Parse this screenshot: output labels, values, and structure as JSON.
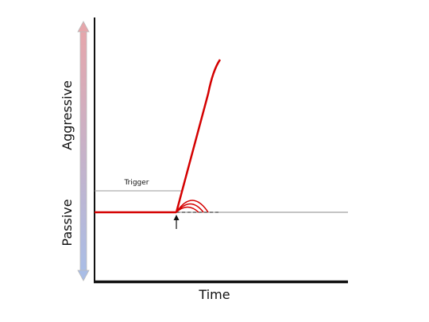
{
  "axes": {
    "y_top": "Aggressive",
    "y_bottom": "Passive",
    "x": "Time"
  },
  "annotations": {
    "trigger": "Trigger"
  }
}
